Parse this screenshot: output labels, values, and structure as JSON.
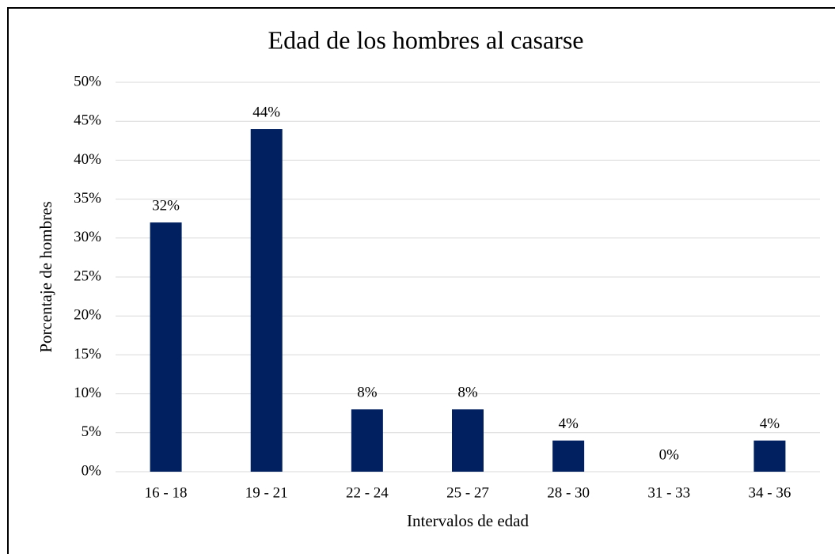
{
  "chart_data": {
    "type": "bar",
    "title": "Edad de los hombres al casarse",
    "x_label": "Intervalos de edad",
    "y_label": "Porcentaje de hombres",
    "categories": [
      "16 - 18",
      "19 - 21",
      "22 - 24",
      "25 - 27",
      "28 - 30",
      "31 - 33",
      "34 - 36"
    ],
    "values": [
      32,
      44,
      8,
      8,
      4,
      0,
      4
    ],
    "value_labels": [
      "32%",
      "44%",
      "8%",
      "8%",
      "4%",
      "0%",
      "4%"
    ],
    "color": "#002060",
    "ylim": [
      0,
      50
    ],
    "yticks": [
      {
        "value": 0,
        "label": "0%"
      },
      {
        "value": 5,
        "label": "5%"
      },
      {
        "value": 10,
        "label": "10%"
      },
      {
        "value": 15,
        "label": "15%"
      },
      {
        "value": 20,
        "label": "20%"
      },
      {
        "value": 25,
        "label": "25%"
      },
      {
        "value": 30,
        "label": "30%"
      },
      {
        "value": 35,
        "label": "35%"
      },
      {
        "value": 40,
        "label": "40%"
      },
      {
        "value": 45,
        "label": "45%"
      },
      {
        "value": 50,
        "label": "50%"
      }
    ],
    "grid": true
  }
}
